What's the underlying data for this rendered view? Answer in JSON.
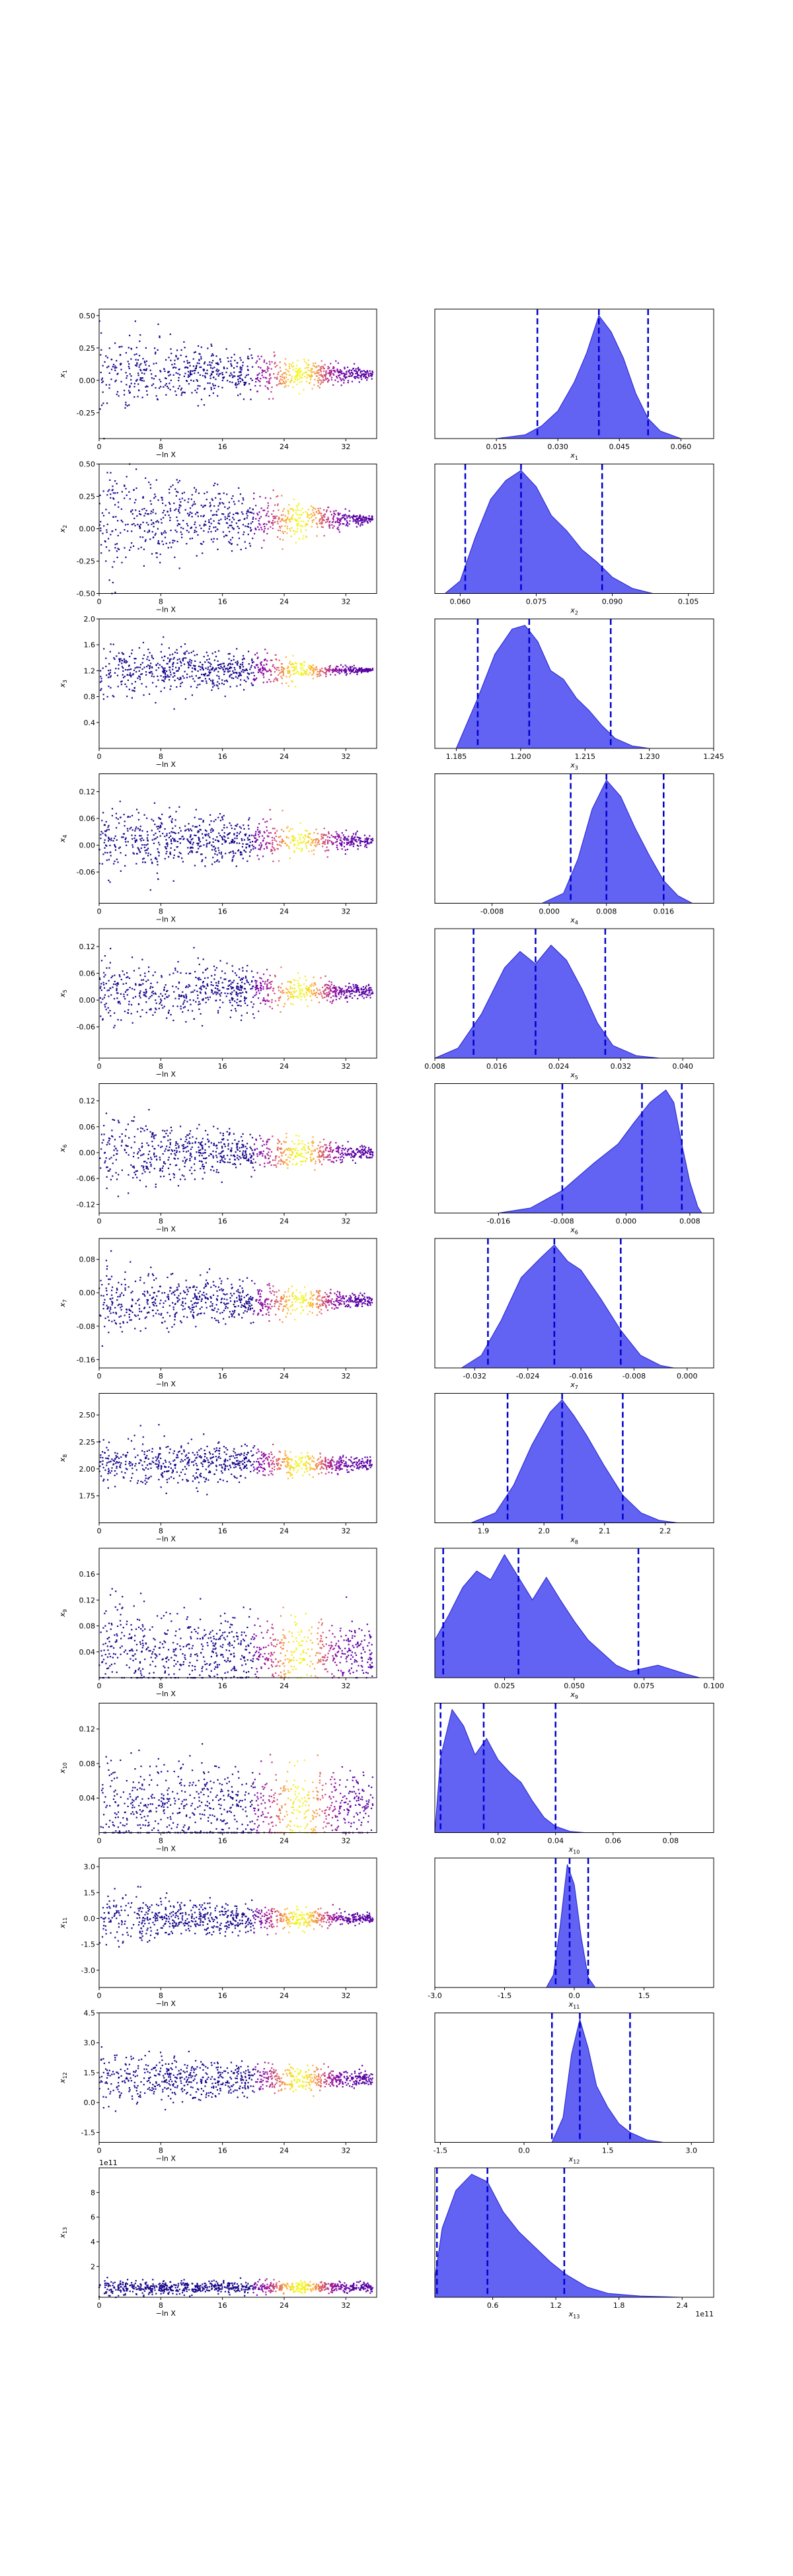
{
  "figure": {
    "xlabel_left": "−ln X",
    "left_xticks": [
      "0",
      "8",
      "16",
      "24",
      "32"
    ],
    "colors": {
      "trace_low": "#0d0887",
      "trace_high": "#f0f921",
      "posterior": "#3b3bf0",
      "quantile_line": "#0000cc"
    }
  },
  "chart_data": [
    {
      "type": "scatter",
      "panel": "trace",
      "ylabel": "x_1",
      "xlim": [
        0,
        36
      ],
      "ylim": [
        -0.45,
        0.55
      ],
      "yticks": [
        "-0.25",
        "0.00",
        "0.25",
        "0.50"
      ],
      "center": 0.05,
      "spread_start": 0.25,
      "spread_end": 0.03
    },
    {
      "type": "area",
      "panel": "posterior",
      "xlabel": "x_1",
      "xlim": [
        0.0,
        0.068
      ],
      "xticks": [
        "0.015",
        "0.030",
        "0.045",
        "0.060"
      ],
      "quantiles": [
        0.025,
        0.04,
        0.052
      ],
      "density": [
        [
          0.015,
          0
        ],
        [
          0.022,
          0.03
        ],
        [
          0.026,
          0.1
        ],
        [
          0.03,
          0.22
        ],
        [
          0.034,
          0.45
        ],
        [
          0.037,
          0.68
        ],
        [
          0.04,
          0.98
        ],
        [
          0.043,
          0.85
        ],
        [
          0.046,
          0.64
        ],
        [
          0.049,
          0.36
        ],
        [
          0.052,
          0.16
        ],
        [
          0.055,
          0.06
        ],
        [
          0.06,
          0
        ]
      ]
    },
    {
      "type": "scatter",
      "panel": "trace",
      "ylabel": "x_2",
      "xlim": [
        0,
        36
      ],
      "ylim": [
        -0.5,
        0.5
      ],
      "yticks": [
        "-0.50",
        "-0.25",
        "0.00",
        "0.25",
        "0.50"
      ],
      "center": 0.07,
      "spread_start": 0.35,
      "spread_end": 0.02
    },
    {
      "type": "area",
      "panel": "posterior",
      "xlabel": "x_2",
      "xlim": [
        0.055,
        0.11
      ],
      "xticks": [
        "0.060",
        "0.075",
        "0.090",
        "0.105"
      ],
      "quantiles": [
        0.061,
        0.072,
        0.088
      ],
      "density": [
        [
          0.057,
          0
        ],
        [
          0.06,
          0.1
        ],
        [
          0.063,
          0.45
        ],
        [
          0.066,
          0.75
        ],
        [
          0.069,
          0.9
        ],
        [
          0.072,
          0.98
        ],
        [
          0.075,
          0.85
        ],
        [
          0.078,
          0.62
        ],
        [
          0.081,
          0.5
        ],
        [
          0.084,
          0.35
        ],
        [
          0.087,
          0.25
        ],
        [
          0.09,
          0.13
        ],
        [
          0.094,
          0.04
        ],
        [
          0.098,
          0
        ]
      ]
    },
    {
      "type": "scatter",
      "panel": "trace",
      "ylabel": "x_3",
      "xlim": [
        0,
        36
      ],
      "ylim": [
        0.0,
        2.0
      ],
      "yticks": [
        "0.4",
        "0.8",
        "1.2",
        "1.6",
        "2.0"
      ],
      "center": 1.21,
      "spread_start": 0.4,
      "spread_end": 0.02
    },
    {
      "type": "area",
      "panel": "posterior",
      "xlabel": "x_3",
      "xlim": [
        1.18,
        1.245
      ],
      "xticks": [
        "1.185",
        "1.200",
        "1.215",
        "1.230",
        "1.245"
      ],
      "quantiles": [
        1.19,
        1.202,
        1.221
      ],
      "density": [
        [
          1.185,
          0
        ],
        [
          1.19,
          0.4
        ],
        [
          1.194,
          0.75
        ],
        [
          1.198,
          0.95
        ],
        [
          1.201,
          0.98
        ],
        [
          1.204,
          0.85
        ],
        [
          1.207,
          0.62
        ],
        [
          1.21,
          0.55
        ],
        [
          1.213,
          0.4
        ],
        [
          1.216,
          0.3
        ],
        [
          1.219,
          0.18
        ],
        [
          1.222,
          0.08
        ],
        [
          1.226,
          0.02
        ],
        [
          1.23,
          0
        ]
      ]
    },
    {
      "type": "scatter",
      "panel": "trace",
      "ylabel": "x_4",
      "xlim": [
        0,
        36
      ],
      "ylim": [
        -0.13,
        0.16
      ],
      "yticks": [
        "-0.06",
        "0.00",
        "0.06",
        "0.12"
      ],
      "center": 0.01,
      "spread_start": 0.07,
      "spread_end": 0.01
    },
    {
      "type": "area",
      "panel": "posterior",
      "xlabel": "x_4",
      "xlim": [
        -0.016,
        0.023
      ],
      "xticks": [
        "-0.008",
        "0.000",
        "0.008",
        "0.016"
      ],
      "quantiles": [
        0.003,
        0.008,
        0.016
      ],
      "density": [
        [
          -0.001,
          0
        ],
        [
          0.002,
          0.08
        ],
        [
          0.004,
          0.35
        ],
        [
          0.006,
          0.75
        ],
        [
          0.008,
          0.98
        ],
        [
          0.01,
          0.85
        ],
        [
          0.012,
          0.6
        ],
        [
          0.014,
          0.38
        ],
        [
          0.016,
          0.18
        ],
        [
          0.018,
          0.06
        ],
        [
          0.02,
          0
        ]
      ]
    },
    {
      "type": "scatter",
      "panel": "trace",
      "ylabel": "x_5",
      "xlim": [
        0,
        36
      ],
      "ylim": [
        -0.13,
        0.16
      ],
      "yticks": [
        "-0.06",
        "0.00",
        "0.06",
        "0.12"
      ],
      "center": 0.02,
      "spread_start": 0.07,
      "spread_end": 0.01
    },
    {
      "type": "area",
      "panel": "posterior",
      "xlabel": "x_5",
      "xlim": [
        0.008,
        0.044
      ],
      "xticks": [
        "0.008",
        "0.016",
        "0.024",
        "0.032",
        "0.040"
      ],
      "quantiles": [
        0.013,
        0.021,
        0.03
      ],
      "density": [
        [
          0.008,
          0
        ],
        [
          0.011,
          0.08
        ],
        [
          0.014,
          0.35
        ],
        [
          0.017,
          0.72
        ],
        [
          0.019,
          0.85
        ],
        [
          0.021,
          0.75
        ],
        [
          0.023,
          0.9
        ],
        [
          0.025,
          0.78
        ],
        [
          0.027,
          0.55
        ],
        [
          0.029,
          0.28
        ],
        [
          0.031,
          0.1
        ],
        [
          0.034,
          0.02
        ],
        [
          0.037,
          0
        ]
      ]
    },
    {
      "type": "scatter",
      "panel": "trace",
      "ylabel": "x_6",
      "xlim": [
        0,
        36
      ],
      "ylim": [
        -0.14,
        0.16
      ],
      "yticks": [
        "-0.12",
        "-0.06",
        "0.00",
        "0.06",
        "0.12"
      ],
      "center": 0.0,
      "spread_start": 0.07,
      "spread_end": 0.01
    },
    {
      "type": "area",
      "panel": "posterior",
      "xlabel": "x_6",
      "xlim": [
        -0.024,
        0.011
      ],
      "xticks": [
        "-0.016",
        "-0.008",
        "0.000",
        "0.008"
      ],
      "quantiles": [
        -0.008,
        0.002,
        0.007
      ],
      "density": [
        [
          -0.016,
          0
        ],
        [
          -0.012,
          0.04
        ],
        [
          -0.008,
          0.18
        ],
        [
          -0.004,
          0.4
        ],
        [
          -0.001,
          0.55
        ],
        [
          0.001,
          0.72
        ],
        [
          0.003,
          0.88
        ],
        [
          0.005,
          0.98
        ],
        [
          0.006,
          0.88
        ],
        [
          0.007,
          0.55
        ],
        [
          0.008,
          0.25
        ],
        [
          0.009,
          0.05
        ],
        [
          0.0095,
          0
        ]
      ]
    },
    {
      "type": "scatter",
      "panel": "trace",
      "ylabel": "x_7",
      "xlim": [
        0,
        36
      ],
      "ylim": [
        -0.18,
        0.13
      ],
      "yticks": [
        "-0.16",
        "-0.08",
        "0.00",
        "0.08"
      ],
      "center": -0.02,
      "spread_start": 0.07,
      "spread_end": 0.01
    },
    {
      "type": "area",
      "panel": "posterior",
      "xlabel": "x_7",
      "xlim": [
        -0.038,
        0.004
      ],
      "xticks": [
        "-0.032",
        "-0.024",
        "-0.016",
        "-0.008",
        "0.000"
      ],
      "quantiles": [
        -0.03,
        -0.02,
        -0.01
      ],
      "density": [
        [
          -0.034,
          0
        ],
        [
          -0.031,
          0.1
        ],
        [
          -0.028,
          0.38
        ],
        [
          -0.025,
          0.72
        ],
        [
          -0.022,
          0.88
        ],
        [
          -0.02,
          0.98
        ],
        [
          -0.018,
          0.85
        ],
        [
          -0.016,
          0.78
        ],
        [
          -0.013,
          0.55
        ],
        [
          -0.01,
          0.3
        ],
        [
          -0.007,
          0.1
        ],
        [
          -0.004,
          0.02
        ],
        [
          -0.002,
          0
        ]
      ]
    },
    {
      "type": "scatter",
      "panel": "trace",
      "ylabel": "x_8",
      "xlim": [
        0,
        36
      ],
      "ylim": [
        1.5,
        2.7
      ],
      "yticks": [
        "1.75",
        "2.00",
        "2.25",
        "2.50"
      ],
      "center": 2.05,
      "spread_start": 0.2,
      "spread_end": 0.05
    },
    {
      "type": "area",
      "panel": "posterior",
      "xlabel": "x_8",
      "xlim": [
        1.82,
        2.28
      ],
      "xticks": [
        "1.9",
        "2.0",
        "2.1",
        "2.2"
      ],
      "quantiles": [
        1.94,
        2.03,
        2.13
      ],
      "density": [
        [
          1.88,
          0
        ],
        [
          1.92,
          0.08
        ],
        [
          1.95,
          0.3
        ],
        [
          1.98,
          0.62
        ],
        [
          2.01,
          0.88
        ],
        [
          2.03,
          0.98
        ],
        [
          2.05,
          0.85
        ],
        [
          2.07,
          0.7
        ],
        [
          2.1,
          0.45
        ],
        [
          2.13,
          0.22
        ],
        [
          2.16,
          0.08
        ],
        [
          2.19,
          0.02
        ],
        [
          2.22,
          0
        ]
      ]
    },
    {
      "type": "scatter",
      "panel": "trace",
      "ylabel": "x_9",
      "xlim": [
        0,
        36
      ],
      "ylim": [
        0.0,
        0.2
      ],
      "yticks": [
        "0.04",
        "0.08",
        "0.12",
        "0.16"
      ],
      "center": 0.04,
      "spread_start": 0.06,
      "spread_end": 0.03
    },
    {
      "type": "area",
      "panel": "posterior",
      "xlabel": "x_9",
      "xlim": [
        0.0,
        0.1
      ],
      "xticks": [
        "0.025",
        "0.050",
        "0.075",
        "0.100"
      ],
      "quantiles": [
        0.003,
        0.03,
        0.073
      ],
      "density": [
        [
          0.0,
          0.3
        ],
        [
          0.005,
          0.5
        ],
        [
          0.01,
          0.72
        ],
        [
          0.015,
          0.85
        ],
        [
          0.02,
          0.78
        ],
        [
          0.025,
          0.98
        ],
        [
          0.03,
          0.8
        ],
        [
          0.035,
          0.62
        ],
        [
          0.04,
          0.8
        ],
        [
          0.045,
          0.62
        ],
        [
          0.05,
          0.45
        ],
        [
          0.055,
          0.3
        ],
        [
          0.06,
          0.2
        ],
        [
          0.065,
          0.1
        ],
        [
          0.07,
          0.05
        ],
        [
          0.08,
          0.1
        ],
        [
          0.09,
          0.03
        ],
        [
          0.095,
          0
        ]
      ]
    },
    {
      "type": "scatter",
      "panel": "trace",
      "ylabel": "x_10",
      "xlim": [
        0,
        36
      ],
      "ylim": [
        0.0,
        0.15
      ],
      "yticks": [
        "0.04",
        "0.08",
        "0.12"
      ],
      "center": 0.03,
      "spread_start": 0.05,
      "spread_end": 0.03
    },
    {
      "type": "area",
      "panel": "posterior",
      "xlabel": "x_10",
      "xlim": [
        -0.002,
        0.095
      ],
      "xticks": [
        "0.02",
        "0.04",
        "0.06",
        "0.08"
      ],
      "quantiles": [
        0.0,
        0.015,
        0.04
      ],
      "density": [
        [
          -0.002,
          0
        ],
        [
          0.0,
          0.6
        ],
        [
          0.004,
          0.98
        ],
        [
          0.008,
          0.85
        ],
        [
          0.012,
          0.62
        ],
        [
          0.016,
          0.75
        ],
        [
          0.02,
          0.58
        ],
        [
          0.024,
          0.48
        ],
        [
          0.028,
          0.4
        ],
        [
          0.032,
          0.25
        ],
        [
          0.036,
          0.12
        ],
        [
          0.04,
          0.05
        ],
        [
          0.045,
          0.01
        ],
        [
          0.05,
          0
        ]
      ]
    },
    {
      "type": "scatter",
      "panel": "trace",
      "ylabel": "x_11",
      "xlim": [
        0,
        36
      ],
      "ylim": [
        -4.0,
        3.5
      ],
      "yticks": [
        "-3.0",
        "-1.5",
        "0.0",
        "1.5",
        "3.0"
      ],
      "center": 0.0,
      "spread_start": 1.2,
      "spread_end": 0.2
    },
    {
      "type": "area",
      "panel": "posterior",
      "xlabel": "x_11",
      "xlim": [
        -3.0,
        3.0
      ],
      "xticks": [
        "-3.0",
        "-1.5",
        "0.0",
        "1.5"
      ],
      "quantiles": [
        -0.4,
        -0.1,
        0.3
      ],
      "density": [
        [
          -0.6,
          0
        ],
        [
          -0.45,
          0.1
        ],
        [
          -0.3,
          0.5
        ],
        [
          -0.15,
          0.98
        ],
        [
          0.0,
          0.82
        ],
        [
          0.15,
          0.4
        ],
        [
          0.3,
          0.08
        ],
        [
          0.45,
          0
        ]
      ]
    },
    {
      "type": "scatter",
      "panel": "trace",
      "ylabel": "x_12",
      "xlim": [
        0,
        36
      ],
      "ylim": [
        -2.0,
        4.5
      ],
      "yticks": [
        "-1.5",
        "0.0",
        "1.5",
        "3.0",
        "4.5"
      ],
      "center": 1.2,
      "spread_start": 1.1,
      "spread_end": 0.3
    },
    {
      "type": "area",
      "panel": "posterior",
      "xlabel": "x_12",
      "xlim": [
        -1.6,
        3.4
      ],
      "xticks": [
        "-1.5",
        "0.0",
        "1.5",
        "3.0"
      ],
      "quantiles": [
        0.5,
        1.0,
        1.9
      ],
      "density": [
        [
          0.5,
          0
        ],
        [
          0.7,
          0.2
        ],
        [
          0.85,
          0.7
        ],
        [
          1.0,
          0.98
        ],
        [
          1.15,
          0.75
        ],
        [
          1.3,
          0.45
        ],
        [
          1.5,
          0.28
        ],
        [
          1.7,
          0.15
        ],
        [
          1.9,
          0.08
        ],
        [
          2.2,
          0.02
        ],
        [
          2.5,
          0
        ]
      ]
    },
    {
      "type": "scatter",
      "panel": "trace",
      "ylabel": "x_13",
      "xlim": [
        0,
        36
      ],
      "ylim": [
        -0.5,
        10.0
      ],
      "yticks": [
        "2",
        "4",
        "6",
        "8"
      ],
      "center": 0.3,
      "spread_start": 0.5,
      "spread_end": 0.3,
      "offset_text": "1e11"
    },
    {
      "type": "area",
      "panel": "posterior",
      "xlabel": "x_13",
      "xlim": [
        0.05,
        2.7
      ],
      "xticks": [
        "0.6",
        "1.2",
        "1.8",
        "2.4"
      ],
      "quantiles": [
        0.07,
        0.55,
        1.28
      ],
      "offset_text": "1e11",
      "density": [
        [
          0.05,
          0.15
        ],
        [
          0.12,
          0.55
        ],
        [
          0.25,
          0.85
        ],
        [
          0.4,
          0.98
        ],
        [
          0.55,
          0.92
        ],
        [
          0.7,
          0.68
        ],
        [
          0.85,
          0.52
        ],
        [
          1.0,
          0.4
        ],
        [
          1.15,
          0.28
        ],
        [
          1.3,
          0.18
        ],
        [
          1.5,
          0.08
        ],
        [
          1.7,
          0.03
        ],
        [
          2.0,
          0.01
        ],
        [
          2.4,
          0
        ]
      ]
    }
  ]
}
